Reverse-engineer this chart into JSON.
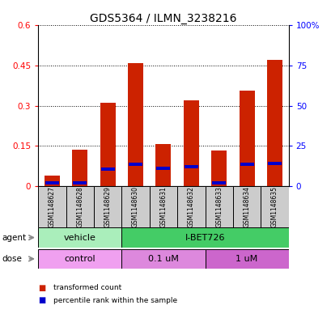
{
  "title": "GDS5364 / ILMN_3238216",
  "samples": [
    "GSM1148627",
    "GSM1148628",
    "GSM1148629",
    "GSM1148630",
    "GSM1148631",
    "GSM1148632",
    "GSM1148633",
    "GSM1148634",
    "GSM1148635"
  ],
  "red_values": [
    0.04,
    0.135,
    0.31,
    0.46,
    0.157,
    0.32,
    0.133,
    0.355,
    0.47
  ],
  "blue_heights": [
    0.012,
    0.012,
    0.012,
    0.012,
    0.012,
    0.012,
    0.012,
    0.012,
    0.012
  ],
  "blue_bottoms": [
    0.007,
    0.007,
    0.058,
    0.075,
    0.06,
    0.065,
    0.007,
    0.075,
    0.078
  ],
  "ylim_left": [
    0,
    0.6
  ],
  "ylim_right": [
    0,
    100
  ],
  "yticks_left": [
    0,
    0.15,
    0.3,
    0.45,
    0.6
  ],
  "ytick_labels_left": [
    "0",
    "0.15",
    "0.3",
    "0.45",
    "0.6"
  ],
  "yticks_right": [
    0,
    25,
    50,
    75,
    100
  ],
  "ytick_labels_right": [
    "0",
    "25",
    "50",
    "75",
    "100%"
  ],
  "agent_groups": [
    {
      "label": "vehicle",
      "start": 0,
      "end": 3,
      "color": "#aaeebb"
    },
    {
      "label": "I-BET726",
      "start": 3,
      "end": 9,
      "color": "#44cc66"
    }
  ],
  "dose_groups": [
    {
      "label": "control",
      "start": 0,
      "end": 3,
      "color": "#f0a0f0"
    },
    {
      "label": "0.1 uM",
      "start": 3,
      "end": 6,
      "color": "#dd88dd"
    },
    {
      "label": "1 uM",
      "start": 6,
      "end": 9,
      "color": "#cc66cc"
    }
  ],
  "bar_color": "#cc2200",
  "blue_color": "#0000cc",
  "sample_bg_color": "#cccccc",
  "bar_width": 0.55,
  "title_fontsize": 10,
  "tick_fontsize": 7.5,
  "label_fontsize": 7.5
}
